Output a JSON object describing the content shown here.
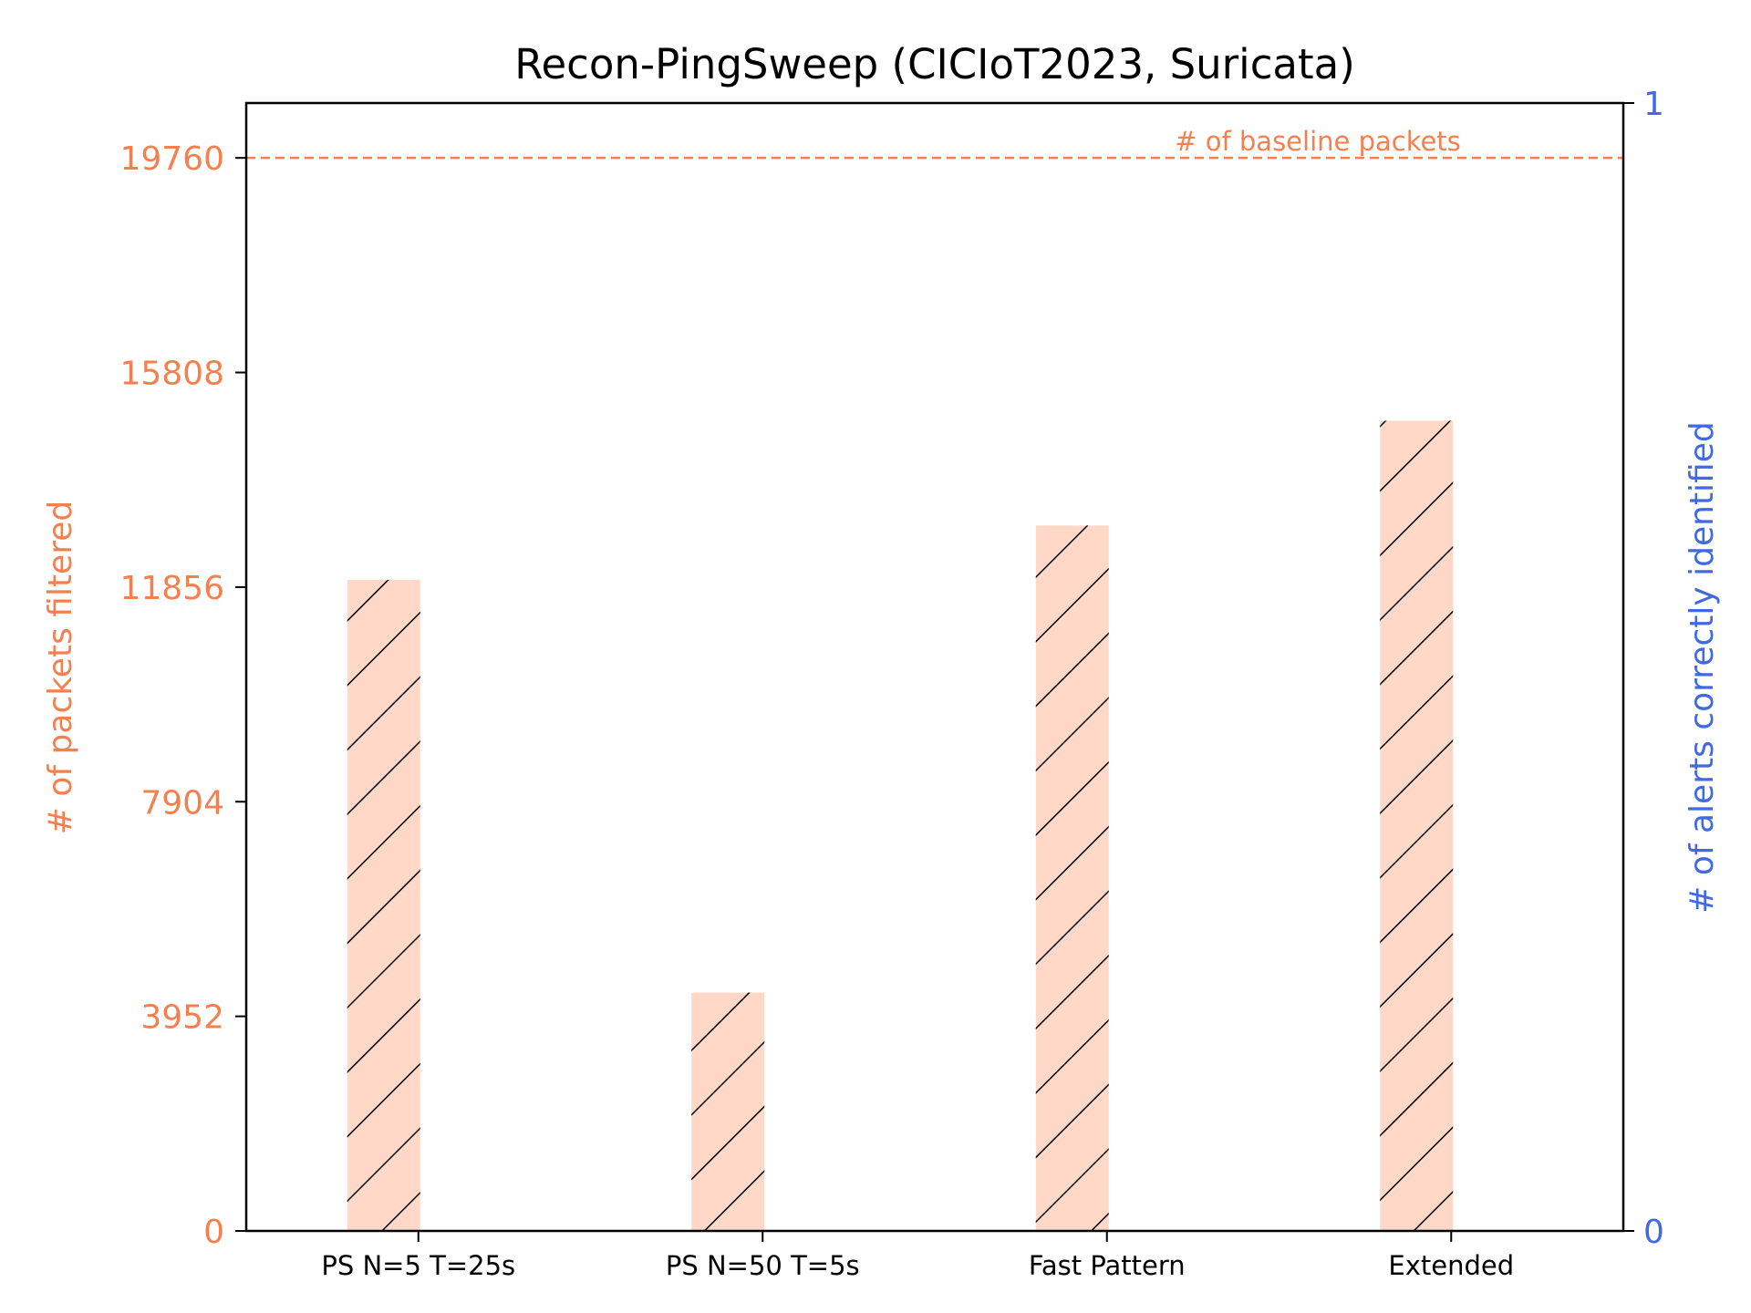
{
  "chart_data": {
    "type": "bar",
    "title": "Recon-PingSweep (CICIoT2023, Suricata)",
    "categories": [
      "PS N=5 T=25s",
      "PS N=50 T=5s",
      "Fast Pattern",
      "Extended"
    ],
    "series": [
      {
        "values": [
          11990,
          4390,
          12990,
          14920
        ],
        "axis": "left",
        "fill_color": "#ffd8c8",
        "hatch": "diagonal"
      }
    ],
    "ylabel": "# of packets filtered",
    "ylabel_right": "# of alerts correctly identified",
    "ylim": [
      0,
      20770
    ],
    "ylim_right": [
      0,
      1
    ],
    "yticks": [
      "0",
      "3952",
      "7904",
      "11856",
      "15808",
      "19760"
    ],
    "yticks_right": [
      "0",
      "1"
    ],
    "reference_line": {
      "value": 19760,
      "label": "# of baseline packets",
      "style": "dashed"
    },
    "colors": {
      "left_axis": "#f4804f",
      "right_axis": "#4169e1",
      "bar_fill": "#ffd8c8",
      "hatch": "#000000",
      "reference_line": "#f4804f"
    }
  }
}
